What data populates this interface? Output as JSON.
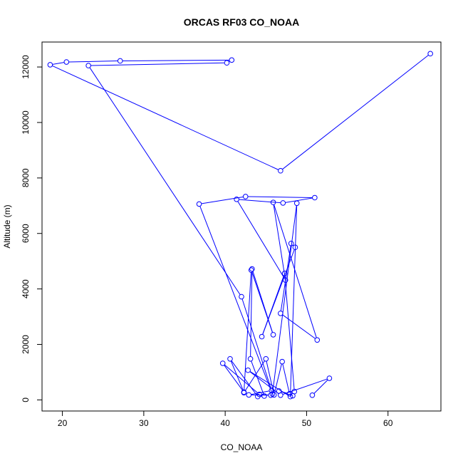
{
  "chart_data": {
    "type": "line",
    "title": "ORCAS RF03 CO_NOAA",
    "xlabel": "CO_NOAA",
    "ylabel": "Altitude (m)",
    "xlim": [
      17.5,
      66.5
    ],
    "ylim": [
      -400,
      12900
    ],
    "x_ticks": [
      20,
      30,
      40,
      50,
      60
    ],
    "y_ticks": [
      0,
      2000,
      4000,
      6000,
      8000,
      10000,
      12000
    ],
    "x_tick_labels": [
      "20",
      "30",
      "40",
      "50",
      "60"
    ],
    "y_tick_labels": [
      "0",
      "2000",
      "4000",
      "6000",
      "8000",
      "10000",
      "12000"
    ],
    "grid": false,
    "legend": "none",
    "color": "#0000ff",
    "series": [
      {
        "x": [
          65.2,
          46.8,
          18.5,
          20.5,
          27.1,
          40.8,
          40.2,
          23.2,
          42.0,
          45.7,
          42.9,
          45.6,
          44.2,
          39.7,
          42.3,
          40.6,
          44.0,
          44.8,
          43.1,
          43.3,
          45.9,
          43.2,
          42.3,
          45.0,
          46.0,
          47.0,
          47.9,
          46.6,
          48.3,
          48.5,
          47.3,
          44.5,
          48.6,
          48.1,
          46.8,
          51.3,
          45.9,
          47.4,
          41.4,
          47.1,
          51.0,
          42.5,
          36.8,
          45.8,
          48.8,
          48.0,
          42.8,
          46.8,
          52.8,
          50.7
        ],
        "y": [
          12480,
          8260,
          12080,
          12180,
          12220,
          12250,
          12150,
          12050,
          3720,
          340,
          180,
          170,
          200,
          1320,
          280,
          1480,
          120,
          140,
          1480,
          4720,
          2350,
          4680,
          260,
          1480,
          180,
          1380,
          220,
          320,
          150,
          300,
          4560,
          2280,
          5500,
          5640,
          3120,
          2160,
          7120,
          4320,
          7230,
          7100,
          7290,
          7330,
          7060,
          210,
          7090,
          120,
          1070,
          170,
          780,
          170
        ]
      }
    ]
  }
}
